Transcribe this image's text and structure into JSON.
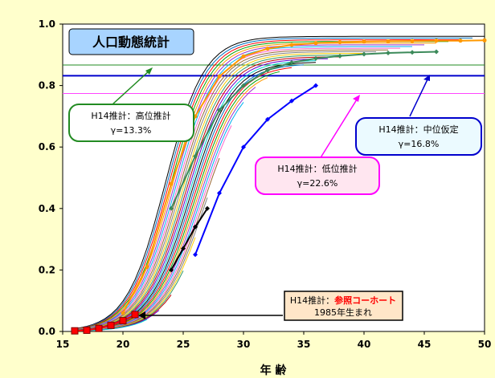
{
  "chart_data": {
    "type": "line",
    "title": "人口動態統計",
    "xlabel": "年 齢",
    "ylabel": "",
    "xlim": [
      15,
      50
    ],
    "ylim": [
      0.0,
      1.0
    ],
    "x_ticks": [
      "15",
      "20",
      "25",
      "30",
      "35",
      "40",
      "45",
      "50"
    ],
    "y_ticks": [
      "0.0",
      "0.2",
      "0.4",
      "0.6",
      "0.8",
      "1.0"
    ],
    "grid": false,
    "reference_lines": [
      {
        "y": 0.867,
        "color": "#228b22"
      },
      {
        "y": 0.832,
        "color": "#0000cd"
      },
      {
        "y": 0.774,
        "color": "#ff44ff"
      }
    ],
    "cohort_curves": {
      "count": 30,
      "ages_x": [
        16,
        18,
        20,
        22,
        24,
        26,
        28,
        30,
        32,
        34,
        36,
        38,
        40,
        42,
        44,
        46,
        48,
        50
      ],
      "earliest": {
        "final": 0.96,
        "midpoint_age": 23.5
      },
      "latest": {
        "final": 0.8,
        "midpoint_age": 27.5
      }
    },
    "highlighted_series": [
      {
        "color": "#ff0000",
        "marker": "square",
        "x": [
          16,
          17,
          18,
          19,
          20,
          21
        ],
        "y": [
          0.002,
          0.004,
          0.01,
          0.02,
          0.035,
          0.055
        ]
      },
      {
        "color": "#000000",
        "marker": "diamond",
        "x": [
          24,
          25,
          26,
          27
        ],
        "y": [
          0.2,
          0.27,
          0.34,
          0.4
        ]
      },
      {
        "color": "#0000ff",
        "marker": "diamond",
        "x": [
          26,
          28,
          30,
          32,
          34,
          36
        ],
        "y": [
          0.25,
          0.45,
          0.6,
          0.69,
          0.75,
          0.8
        ]
      },
      {
        "color": "#3c8a5a",
        "marker": "diamond",
        "x": [
          24,
          26,
          28,
          30,
          32,
          34,
          36,
          38,
          40,
          42,
          44,
          46
        ],
        "y": [
          0.4,
          0.57,
          0.72,
          0.8,
          0.85,
          0.875,
          0.888,
          0.896,
          0.902,
          0.906,
          0.908,
          0.91
        ]
      },
      {
        "color": "#ff9900",
        "marker": "dot",
        "x": [
          20,
          22,
          24,
          26,
          28,
          30,
          32,
          34,
          36,
          38,
          40,
          42,
          44,
          46,
          48,
          50
        ],
        "y": [
          0.06,
          0.21,
          0.48,
          0.7,
          0.83,
          0.895,
          0.92,
          0.932,
          0.938,
          0.941,
          0.943,
          0.944,
          0.945,
          0.946,
          0.946,
          0.947
        ]
      }
    ],
    "annotations": [
      {
        "id": "high",
        "line1": "H14推計：高位推計",
        "line2": "γ=13.3%",
        "border": "#228b22",
        "fill": "#ffffff"
      },
      {
        "id": "mid",
        "line1": "H14推計：中位仮定",
        "line2": "γ=16.8%",
        "border": "#0000cd",
        "fill": "#ebfaff"
      },
      {
        "id": "low",
        "line1": "H14推計：低位推計",
        "line2": "γ=22.6%",
        "border": "#ff00ff",
        "fill": "#ffe6f0"
      },
      {
        "id": "ref",
        "line1a": "H14推計：",
        "line1b": "参照コーホート",
        "line2": "1985年生まれ",
        "border": "#000000",
        "fill": "#ffe6c8",
        "emph_color": "#ff0000"
      }
    ]
  }
}
